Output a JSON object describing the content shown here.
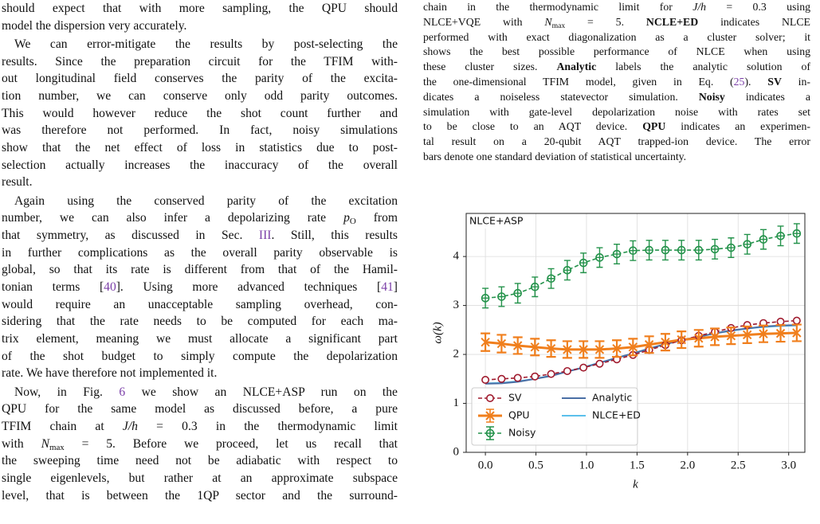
{
  "left_column": {
    "paragraphs": [
      {
        "lines": [
          [
            "should expect that with more sampling, the QPU should"
          ],
          [
            "model the dispersion very accurately."
          ]
        ]
      },
      {
        "lines": [
          [
            "We can error-mitigate the results by post-selecting the"
          ],
          [
            "results. Since the preparation circuit for the TFIM with-"
          ],
          [
            "out longitudinal field conserves the parity of the excita-"
          ],
          [
            "tion number, we can conserve only odd parity outcomes."
          ],
          [
            "This would however reduce the shot count further and"
          ],
          [
            "was therefore not performed. In fact, noisy simulations"
          ],
          [
            "show that the net effect of loss in statistics due to post-"
          ],
          [
            "selection actually increases the inaccuracy of the overall"
          ],
          [
            "result."
          ]
        ]
      },
      {
        "lines": [
          [
            "Again using the conserved parity of the excitation"
          ],
          [
            "number, we can also infer a depolarizing rate ",
            {
              "text": "p",
              "style": "italic"
            },
            {
              "text": "O",
              "style": "sub"
            },
            " from"
          ],
          [
            "that symmetry, as discussed in Sec. ",
            {
              "text": "III",
              "style": "link"
            },
            ". Still, this results"
          ],
          [
            "in further complications as the overall parity observable is"
          ],
          [
            "global, so that its rate is different from that of the Hamil-"
          ],
          [
            "tonian terms [",
            {
              "text": "40",
              "style": "link"
            },
            "]. Using more advanced techniques [",
            {
              "text": "41",
              "style": "link"
            },
            "]"
          ],
          [
            "would require an unacceptable sampling overhead, con-"
          ],
          [
            "sidering that the rate needs to be computed for each ma-"
          ],
          [
            "trix element, meaning we must allocate a significant part"
          ],
          [
            "of the shot budget to simply compute the depolarization"
          ],
          [
            "rate. We have therefore not implemented it."
          ]
        ]
      },
      {
        "lines": [
          [
            "Now, in Fig. ",
            {
              "text": "6",
              "style": "link"
            },
            " we show an NLCE+ASP run on the"
          ],
          [
            "QPU for the same model as discussed before, a pure"
          ],
          [
            "TFIM chain at ",
            {
              "text": "J/h",
              "style": "italic"
            },
            " = 0.3 in the thermodynamic limit"
          ],
          [
            "with ",
            {
              "text": "N",
              "style": "italic"
            },
            {
              "text": "max",
              "style": "sub"
            },
            " = 5. Before we proceed, let us recall that"
          ],
          [
            "the sweeping time need not be adiabatic with respect to"
          ],
          [
            "single eigenlevels, but rather at an approximate subspace"
          ],
          [
            "level, that is between the 1QP sector and the surround-"
          ]
        ]
      }
    ]
  },
  "caption": {
    "lines": [
      [
        "chain in the thermodynamic limit for ",
        {
          "text": "J/h",
          "style": "italic"
        },
        " = 0.3 using"
      ],
      [
        "NLCE+VQE with ",
        {
          "text": "N",
          "style": "italic"
        },
        {
          "text": "max",
          "style": "sub"
        },
        " = 5. ",
        {
          "text": "NCLE+ED",
          "style": "bold"
        },
        " indicates NLCE"
      ],
      [
        "performed with exact diagonalization as a cluster solver; it"
      ],
      [
        "shows the best possible performance of NLCE when using"
      ],
      [
        "these cluster sizes. ",
        {
          "text": "Analytic",
          "style": "bold"
        },
        " labels the analytic solution of"
      ],
      [
        "the one-dimensional TFIM model, given in Eq. (",
        {
          "text": "25",
          "style": "link"
        },
        "). ",
        {
          "text": "SV",
          "style": "bold"
        },
        " in-"
      ],
      [
        "dicates a noiseless statevector simulation. ",
        {
          "text": "Noisy",
          "style": "bold"
        },
        " indicates a"
      ],
      [
        "simulation with gate-level depolarization noise with rates set"
      ],
      [
        "to be close to an AQT device. ",
        {
          "text": "QPU",
          "style": "bold"
        },
        " indicates an experimen-"
      ],
      [
        "tal result on a 20-qubit AQT trapped-ion device. The error"
      ],
      [
        "bars denote one standard deviation of statistical uncertainty."
      ]
    ]
  },
  "chart_data": {
    "type": "line",
    "title": "NLCE+ASP",
    "xlabel": "k",
    "ylabel": "ω(k)",
    "x": [
      0,
      0.16,
      0.32,
      0.49,
      0.65,
      0.81,
      0.97,
      1.13,
      1.3,
      1.46,
      1.62,
      1.78,
      1.94,
      2.11,
      2.27,
      2.43,
      2.59,
      2.75,
      2.92,
      3.08
    ],
    "xlim": [
      -0.19,
      3.16
    ],
    "ylim": [
      0,
      4.88
    ],
    "xticks": [
      {
        "value": 0,
        "label": "0.0"
      },
      0.5,
      {
        "value": 1,
        "label": "1.0"
      },
      1.5,
      {
        "value": 2,
        "label": "2.0"
      },
      2.5,
      {
        "value": 3,
        "label": "3.0"
      }
    ],
    "yticks": [
      0,
      1,
      2,
      3,
      4
    ],
    "grid": true,
    "legend": "lower left",
    "series": [
      {
        "name": "SV",
        "color": "#a01b2e",
        "marker": "circle",
        "linestyle": "dashed",
        "values": [
          1.48,
          1.5,
          1.52,
          1.55,
          1.6,
          1.66,
          1.73,
          1.81,
          1.9,
          1.99,
          2.09,
          2.19,
          2.29,
          2.38,
          2.46,
          2.54,
          2.6,
          2.64,
          2.67,
          2.69
        ]
      },
      {
        "name": "QPU",
        "color": "#f07f1d",
        "marker": "x",
        "linestyle": "solid",
        "values": [
          2.25,
          2.22,
          2.18,
          2.15,
          2.12,
          2.1,
          2.1,
          2.1,
          2.12,
          2.15,
          2.2,
          2.25,
          2.3,
          2.33,
          2.36,
          2.38,
          2.4,
          2.42,
          2.43,
          2.44
        ],
        "errors": [
          0.18,
          0.18,
          0.17,
          0.17,
          0.17,
          0.17,
          0.17,
          0.17,
          0.17,
          0.17,
          0.17,
          0.17,
          0.17,
          0.17,
          0.17,
          0.17,
          0.17,
          0.17,
          0.17,
          0.17
        ]
      },
      {
        "name": "Noisy",
        "color": "#23924a",
        "marker": "circle-plus",
        "linestyle": "dashed",
        "values": [
          3.15,
          3.18,
          3.25,
          3.38,
          3.55,
          3.72,
          3.87,
          3.98,
          4.05,
          4.12,
          4.13,
          4.13,
          4.13,
          4.13,
          4.15,
          4.18,
          4.25,
          4.35,
          4.42,
          4.47
        ],
        "errors": [
          0.2,
          0.2,
          0.2,
          0.2,
          0.2,
          0.2,
          0.2,
          0.2,
          0.2,
          0.2,
          0.2,
          0.2,
          0.2,
          0.2,
          0.2,
          0.2,
          0.2,
          0.2,
          0.2,
          0.2
        ]
      },
      {
        "name": "Analytic",
        "color": "#4a6fa5",
        "marker": null,
        "linestyle": "solid",
        "values": [
          1.4,
          1.41,
          1.44,
          1.5,
          1.56,
          1.65,
          1.73,
          1.83,
          1.93,
          2.02,
          2.12,
          2.21,
          2.29,
          2.36,
          2.43,
          2.49,
          2.53,
          2.57,
          2.59,
          2.6
        ]
      },
      {
        "name": "NLCE+ED",
        "color": "#5bc0eb",
        "marker": null,
        "linestyle": "solid",
        "values": [
          1.41,
          1.42,
          1.45,
          1.5,
          1.57,
          1.65,
          1.74,
          1.83,
          1.93,
          2.02,
          2.12,
          2.21,
          2.29,
          2.36,
          2.43,
          2.48,
          2.53,
          2.56,
          2.58,
          2.59
        ]
      }
    ]
  }
}
